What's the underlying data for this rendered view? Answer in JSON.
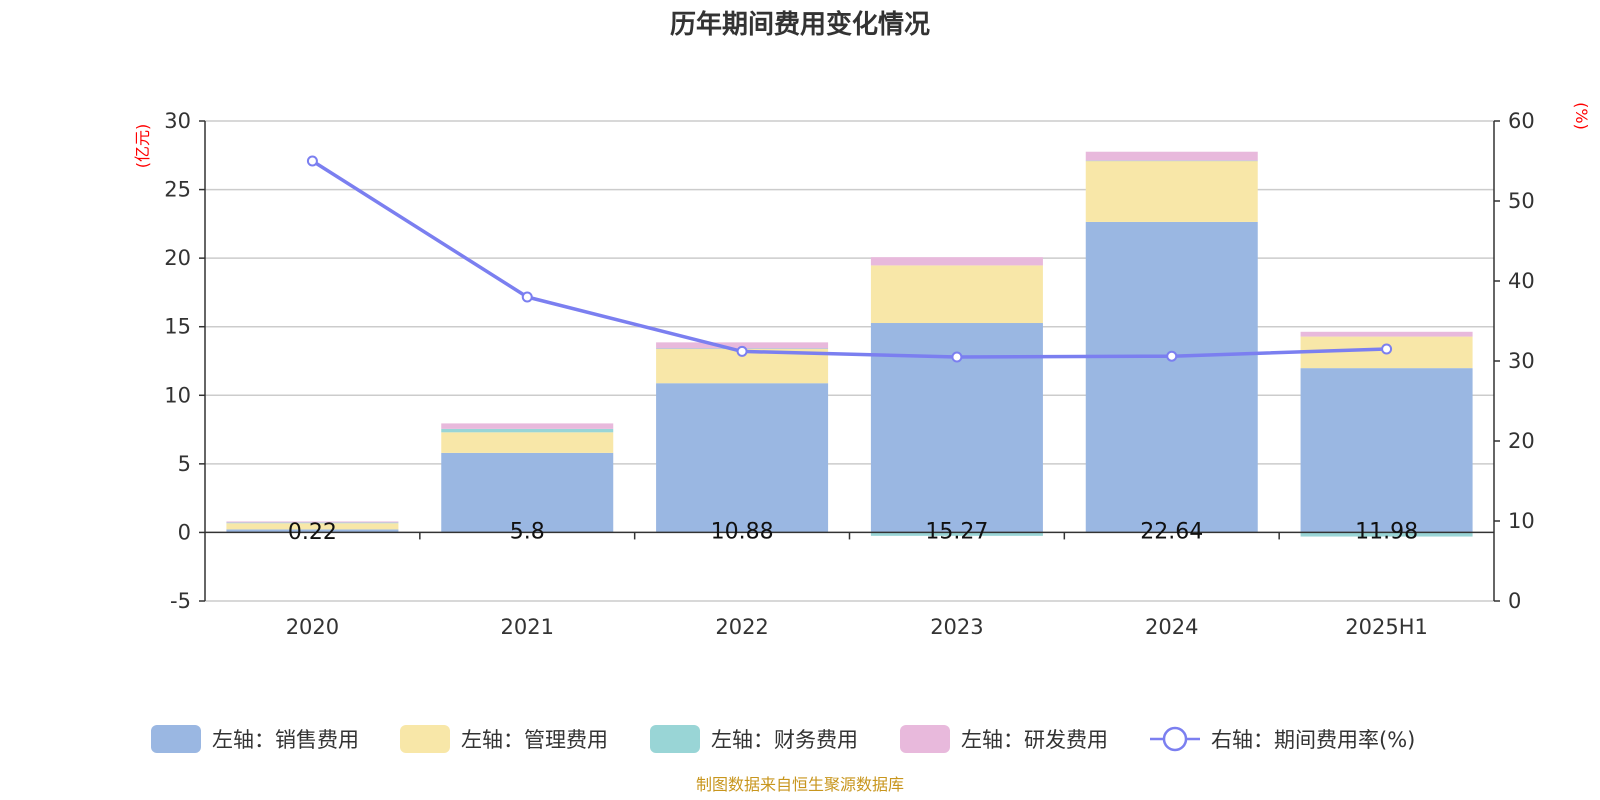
{
  "chart_data": {
    "type": "bar",
    "title": "历年期间费用变化情况",
    "left_unit": "(亿元)",
    "right_unit": "(%)",
    "categories": [
      "2020",
      "2021",
      "2022",
      "2023",
      "2024",
      "2025H1"
    ],
    "left_axis": {
      "ylim": [
        -5,
        30
      ],
      "ticks": [
        "-5",
        "0",
        "5",
        "10",
        "15",
        "20",
        "25",
        "30"
      ]
    },
    "right_axis": {
      "ylim": [
        0,
        60
      ],
      "ticks": [
        "0",
        "10",
        "20",
        "30",
        "40",
        "50",
        "60"
      ]
    },
    "grid": true,
    "legend_position": "bottom",
    "series": [
      {
        "name": "左轴：销售费用",
        "type": "bar",
        "stack": "cost",
        "color": "#9ab7e2",
        "values": [
          0.22,
          5.8,
          10.88,
          15.27,
          22.64,
          11.98
        ],
        "labels": [
          "0.22",
          "5.8",
          "10.88",
          "15.27",
          "22.64",
          "11.98"
        ]
      },
      {
        "name": "左轴：管理费用",
        "type": "bar",
        "stack": "cost",
        "color": "#f8e7a8",
        "values": [
          0.45,
          1.5,
          2.5,
          4.2,
          4.45,
          2.3
        ]
      },
      {
        "name": "左轴：财务费用",
        "type": "bar",
        "stack": "cost",
        "color": "#99d5d6",
        "values": [
          0.05,
          0.25,
          0.03,
          -0.25,
          0.02,
          -0.3
        ]
      },
      {
        "name": "左轴：研发费用",
        "type": "bar",
        "stack": "cost",
        "color": "#e8b9dc",
        "values": [
          0.08,
          0.4,
          0.45,
          0.6,
          0.65,
          0.35
        ]
      },
      {
        "name": "右轴：期间费用率(%)",
        "type": "line",
        "axis": "right",
        "color": "#7b7ff0",
        "values": [
          55,
          38,
          31.2,
          30.5,
          30.6,
          31.5
        ]
      }
    ]
  },
  "source_note": "制图数据来自恒生聚源数据库"
}
